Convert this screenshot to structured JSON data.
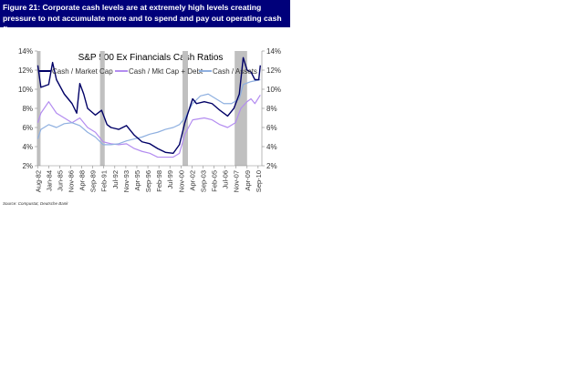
{
  "figure": {
    "caption": "Figure 21: Corporate cash levels are at extremely high levels creating pressure to not accumulate more and to spend and pay out operating cash flows",
    "source": "Source: Compustat, Deutsche Bank"
  },
  "chart_data": {
    "type": "line",
    "title": "S&P 500 Ex Financials Cash Ratios",
    "xlabel": "",
    "ylabel": "",
    "ylim": [
      2,
      14
    ],
    "yticks": [
      "2%",
      "4%",
      "6%",
      "8%",
      "10%",
      "12%",
      "14%"
    ],
    "xticks": [
      "Aug-82",
      "Jan-84",
      "Jun-85",
      "Nov-86",
      "Apr-88",
      "Sep-89",
      "Feb-91",
      "Jul-92",
      "Nov-93",
      "Apr-95",
      "Sep-96",
      "Feb-98",
      "Jul-99",
      "Nov-00",
      "Apr-02",
      "Sep-03",
      "Feb-05",
      "Jul-06",
      "Nov-07",
      "Apr-09",
      "Sep-10"
    ],
    "legend_position": "top",
    "recessions": [
      [
        1982.6,
        1982.9
      ],
      [
        1990.6,
        1991.2
      ],
      [
        2001.2,
        2001.9
      ],
      [
        2007.9,
        2009.5
      ]
    ],
    "series": [
      {
        "name": "Cash / Market Cap",
        "color": "#000066",
        "x": [
          1982.6,
          1983,
          1984,
          1984.5,
          1985,
          1986,
          1987,
          1987.6,
          1988,
          1988.5,
          1989,
          1990,
          1990.8,
          1991.5,
          1992,
          1993,
          1994,
          1995,
          1996,
          1997,
          1998,
          1999,
          2000,
          2000.8,
          2001.5,
          2002.5,
          2003,
          2004,
          2005,
          2006,
          2007,
          2007.8,
          2008.5,
          2009,
          2009.5,
          2010,
          2010.5,
          2011,
          2011.2
        ],
        "y": [
          12.5,
          10.2,
          10.5,
          12.8,
          11,
          9.5,
          8.5,
          7.5,
          10.6,
          9.5,
          8,
          7.3,
          7.8,
          6.3,
          6,
          5.8,
          6.2,
          5.2,
          4.5,
          4.3,
          3.8,
          3.4,
          3.3,
          4.2,
          6.5,
          9,
          8.5,
          8.7,
          8.5,
          7.8,
          7.2,
          8,
          9.5,
          13.3,
          12,
          11.8,
          11,
          11,
          12.5
        ]
      },
      {
        "name": "Cash / Mkt Cap + Debt",
        "color": "#b38cf0",
        "x": [
          1982.6,
          1983,
          1984,
          1985,
          1986,
          1987,
          1988,
          1989,
          1990,
          1991,
          1992,
          1993,
          1994,
          1995,
          1996,
          1997,
          1998,
          1999,
          2000,
          2000.8,
          2001.5,
          2002.5,
          2004,
          2005,
          2006,
          2007,
          2008,
          2008.7,
          2009.5,
          2010,
          2010.5,
          2011.2
        ],
        "y": [
          6.5,
          7.5,
          8.7,
          7.5,
          7,
          6.5,
          7,
          6,
          5.5,
          4.5,
          4.3,
          4.2,
          4.3,
          3.8,
          3.5,
          3.3,
          2.9,
          2.9,
          2.9,
          3.3,
          5.3,
          6.8,
          7,
          6.8,
          6.3,
          6,
          6.5,
          8,
          8.7,
          9,
          8.5,
          9.4
        ]
      },
      {
        "name": "Cash / Assets",
        "color": "#8fb0e0",
        "x": [
          1982.6,
          1983,
          1984,
          1985,
          1986,
          1987,
          1988,
          1989,
          1990,
          1991,
          1992,
          1993,
          1994,
          1995,
          1996,
          1997,
          1998,
          1999,
          2000,
          2000.8,
          2001.5,
          2002.5,
          2003.5,
          2004.5,
          2005.5,
          2006.5,
          2007.5,
          2008.5,
          2009,
          2010,
          2011.2
        ],
        "y": [
          4.8,
          5.8,
          6.3,
          6,
          6.4,
          6.5,
          6.2,
          5.5,
          5,
          4.2,
          4.2,
          4.3,
          4.6,
          4.8,
          5,
          5.3,
          5.5,
          5.8,
          6,
          6.3,
          7,
          8.5,
          9.3,
          9.5,
          9,
          8.5,
          8.5,
          9,
          10.5,
          10.8,
          11
        ]
      }
    ]
  }
}
